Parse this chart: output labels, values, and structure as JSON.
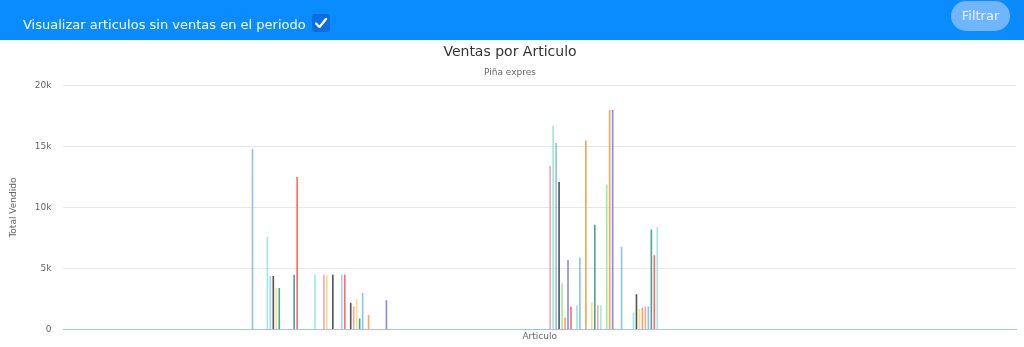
{
  "chart_data": {
    "type": "bar",
    "title": "Ventas por Articulo",
    "subtitle": "Piña expres",
    "xlabel": "Articulo",
    "ylabel": "Total Vendido",
    "annotations": [
      "Visualizar articulos sin ventas en el periodo",
      "Filtrar"
    ],
    "categories": [
      null,
      null,
      null,
      null,
      null,
      null,
      null,
      null,
      null,
      null,
      null,
      null,
      null,
      null,
      null,
      null,
      null,
      null,
      null,
      null,
      null,
      null,
      null,
      null,
      null,
      null,
      null,
      null,
      null,
      null,
      null,
      null,
      null,
      null,
      null,
      null,
      null,
      null,
      null,
      null,
      null,
      null,
      null,
      null,
      null,
      null,
      null,
      null,
      null,
      null,
      null,
      null,
      null,
      null,
      null,
      null,
      null,
      null,
      null,
      null,
      null,
      null,
      null,
      null,
      null,
      null,
      null,
      null,
      null,
      null,
      null,
      null,
      null,
      null,
      null,
      null,
      null,
      null,
      null,
      null,
      null,
      null,
      null,
      null,
      null,
      null,
      null,
      null,
      null,
      null,
      null,
      null,
      null,
      null,
      null,
      null,
      null,
      null,
      null,
      null,
      null,
      null,
      null,
      null,
      null,
      null,
      null,
      null,
      null,
      null,
      null,
      null,
      null,
      null,
      null,
      null,
      null,
      null,
      null,
      null,
      null,
      null,
      null,
      null,
      null,
      null,
      null,
      null,
      null,
      null,
      null,
      null,
      null,
      null,
      null,
      null,
      null,
      null,
      null,
      null,
      null,
      null,
      null,
      null,
      null,
      null,
      null,
      null,
      null,
      null,
      null,
      null,
      null,
      null,
      null,
      null,
      null,
      null,
      null,
      null,
      null,
      null,
      null,
      null,
      null,
      null,
      null,
      null,
      null,
      null,
      null,
      null,
      null,
      null,
      null,
      null,
      null,
      null,
      null,
      null,
      null,
      null,
      null,
      null,
      null,
      null,
      null,
      null,
      null,
      null,
      null,
      null,
      null,
      null,
      null,
      null,
      null,
      null,
      null,
      null,
      null,
      null,
      null,
      null,
      null,
      null,
      null,
      null,
      null,
      null,
      null,
      null,
      null,
      null,
      null,
      null,
      null,
      null,
      null,
      null,
      null,
      null,
      null,
      null,
      null,
      null,
      null,
      null,
      null,
      null,
      null,
      null,
      null,
      null,
      null,
      null,
      null,
      null,
      null,
      null,
      null,
      null,
      null,
      null,
      null,
      null,
      null,
      null,
      null,
      null,
      null,
      null,
      null,
      null,
      null,
      null,
      null,
      null,
      null,
      null,
      null,
      null,
      null,
      null,
      null,
      null,
      null,
      null,
      null,
      null,
      null,
      null,
      null,
      null,
      null,
      null,
      null,
      null,
      null,
      null,
      null,
      null,
      null,
      null,
      null,
      null,
      null,
      null,
      null,
      null,
      null,
      null,
      null,
      null,
      null,
      null,
      null,
      null,
      null,
      null,
      null,
      null,
      null,
      null,
      null,
      null,
      null,
      null,
      null,
      null,
      null,
      null,
      null,
      null,
      null,
      null,
      null,
      null,
      null,
      null
    ],
    "values": [
      0,
      0,
      0,
      0,
      0,
      0,
      0,
      0,
      0,
      0,
      0,
      0,
      0,
      0,
      0,
      0,
      0,
      0,
      0,
      0,
      0,
      0,
      0,
      0,
      0,
      0,
      0,
      0,
      0,
      0,
      0,
      0,
      0,
      0,
      0,
      0,
      0,
      0,
      0,
      0,
      0,
      0,
      0,
      0,
      0,
      0,
      0,
      0,
      0,
      0,
      0,
      0,
      0,
      0,
      0,
      0,
      0,
      0,
      0,
      0,
      0,
      0,
      0,
      14800,
      0,
      0,
      0,
      0,
      7600,
      4400,
      4400,
      3400,
      3400,
      0,
      0,
      0,
      0,
      4500,
      12500,
      0,
      0,
      0,
      0,
      0,
      4500,
      0,
      0,
      4500,
      4500,
      0,
      4500,
      0,
      0,
      4500,
      4500,
      0,
      2200,
      1900,
      2500,
      900,
      3000,
      0,
      1200,
      0,
      0,
      0,
      0,
      0,
      2400,
      0,
      0,
      0,
      0,
      0,
      0,
      0,
      0,
      0,
      0,
      0,
      0,
      0,
      0,
      0,
      0,
      0,
      0,
      0,
      0,
      0,
      0,
      0,
      0,
      0,
      0,
      0,
      0,
      0,
      0,
      0,
      0,
      0,
      0,
      0,
      0,
      0,
      0,
      0,
      0,
      0,
      0,
      0,
      0,
      0,
      0,
      0,
      0,
      0,
      0,
      0,
      0,
      0,
      0,
      13400,
      16700,
      15300,
      12100,
      3800,
      1000,
      5700,
      1900,
      0,
      2000,
      5900,
      0,
      15500,
      0,
      2200,
      8600,
      2000,
      2000,
      0,
      11900,
      18000,
      18000,
      0,
      0,
      6800,
      0,
      0,
      0,
      1400,
      2900,
      1700,
      1800,
      1900,
      1900,
      8200,
      6100,
      8400,
      0,
      0,
      0,
      0,
      0,
      0,
      0,
      0,
      0,
      0,
      0,
      0,
      0,
      0,
      0,
      0,
      0,
      0,
      0,
      0,
      0,
      0,
      0,
      0,
      0,
      0,
      0,
      0,
      0,
      0,
      0,
      0,
      0,
      0,
      0,
      0,
      0,
      0,
      0,
      0,
      0,
      0,
      0,
      0,
      0,
      0,
      0,
      0,
      0,
      0,
      0,
      0,
      0,
      0,
      0,
      0,
      0,
      0,
      0,
      0,
      0,
      0,
      0,
      0,
      0,
      0,
      0,
      0,
      0,
      0,
      0,
      0,
      0,
      0,
      0,
      0,
      0,
      0,
      0,
      0,
      0,
      0,
      0,
      0,
      0,
      0,
      0,
      0,
      0,
      0,
      0,
      0,
      0,
      0,
      0,
      0,
      0,
      0,
      0,
      0,
      0,
      0,
      0,
      0,
      0,
      0,
      0,
      0,
      0,
      0,
      0,
      0,
      0,
      0,
      0,
      0,
      0,
      0,
      0,
      0
    ],
    "colors": [
      null,
      null,
      null,
      null,
      null,
      null,
      null,
      null,
      null,
      null,
      null,
      null,
      null,
      null,
      null,
      null,
      null,
      null,
      null,
      null,
      null,
      null,
      null,
      null,
      null,
      null,
      null,
      null,
      null,
      null,
      null,
      null,
      null,
      null,
      null,
      null,
      null,
      null,
      null,
      null,
      null,
      null,
      null,
      null,
      null,
      null,
      null,
      null,
      null,
      null,
      null,
      null,
      null,
      null,
      null,
      null,
      null,
      null,
      null,
      null,
      null,
      null,
      null,
      "#8ec3ee",
      null,
      null,
      null,
      null,
      "#9ee9e0",
      "#a9d3f2",
      "#555555",
      "#efe38e",
      "#4aa596",
      null,
      null,
      null,
      null,
      "#4aa596",
      "#ff6b6b",
      null,
      null,
      null,
      null,
      null,
      "#9ee9e0",
      null,
      null,
      "#f4a9a9",
      "#efe38e",
      null,
      "#555555",
      null,
      null,
      "#a9d3f2",
      "#ff6b6b",
      null,
      "#555555",
      "#f4a9a9",
      "#efe38e",
      "#4aa596",
      "#8ec3ee",
      null,
      "#f7a55a",
      null,
      null,
      null,
      null,
      null,
      "#8b8bea",
      null,
      null,
      null,
      null,
      null,
      null,
      null,
      null,
      null,
      null,
      null,
      null,
      null,
      null,
      null,
      null,
      null,
      null,
      null,
      null,
      null,
      null,
      null,
      null,
      null,
      null,
      null,
      null,
      null,
      null,
      null,
      null,
      null,
      null,
      null,
      null,
      null,
      null,
      null,
      null,
      null,
      null,
      null,
      null,
      null,
      null,
      null,
      null,
      null,
      null,
      null,
      null,
      null,
      null,
      "#f4a9a9",
      "#9ee9e0",
      "#8ec3ee",
      "#555555",
      "#a8e6a0",
      "#f7a55a",
      "#8b8bea",
      "#ff6b6b",
      null,
      "#9ee9e0",
      "#8ec3ee",
      null,
      "#f7a55a",
      null,
      "#efe38e",
      "#4aa596",
      "#f4a9a9",
      "#9ee9e0",
      null,
      "#a8e6a0",
      "#f7a55a",
      "#8b8bea",
      null,
      null,
      "#8ec3ee",
      null,
      null,
      null,
      "#9ee9e0",
      "#555555",
      "#efe38e",
      "#f7a55a",
      "#f4a9a9",
      "#8ec3ee",
      "#4aa596",
      "#ff6b6b",
      "#9ee9e0",
      null,
      null,
      null,
      null,
      null,
      null,
      null,
      null,
      null,
      null,
      null,
      null,
      null,
      null,
      null,
      null,
      null,
      null,
      null,
      null,
      null,
      null,
      null,
      null,
      null,
      null,
      null,
      null,
      null,
      null,
      null,
      null,
      null,
      null,
      null,
      null,
      null,
      null,
      null,
      null,
      null,
      null,
      null,
      null,
      null,
      null,
      null,
      null,
      null,
      null,
      null,
      null,
      null,
      null,
      null,
      null,
      null,
      null,
      null,
      null,
      null,
      null,
      null,
      null,
      null,
      null,
      null,
      null,
      null,
      null,
      null,
      null,
      null,
      null,
      null,
      null,
      null,
      null,
      null,
      null,
      null,
      null,
      null,
      null,
      null,
      null,
      null,
      null,
      null,
      null,
      null,
      null,
      null,
      null,
      null,
      null,
      null,
      null,
      null,
      null,
      null,
      null,
      null,
      null,
      null,
      null,
      null,
      null,
      null,
      null,
      null,
      null,
      null,
      null,
      null,
      null,
      null,
      null,
      null,
      null
    ],
    "ylim": [
      0,
      20000
    ],
    "yticks": [
      0,
      {
        "value": 5000,
        "label": "5k"
      },
      {
        "value": 10000,
        "label": "10k"
      },
      {
        "value": 15000,
        "label": "15k"
      },
      {
        "value": 20000,
        "label": "20k"
      }
    ],
    "grid": "y",
    "legend": false,
    "tick_labels": "y"
  }
}
